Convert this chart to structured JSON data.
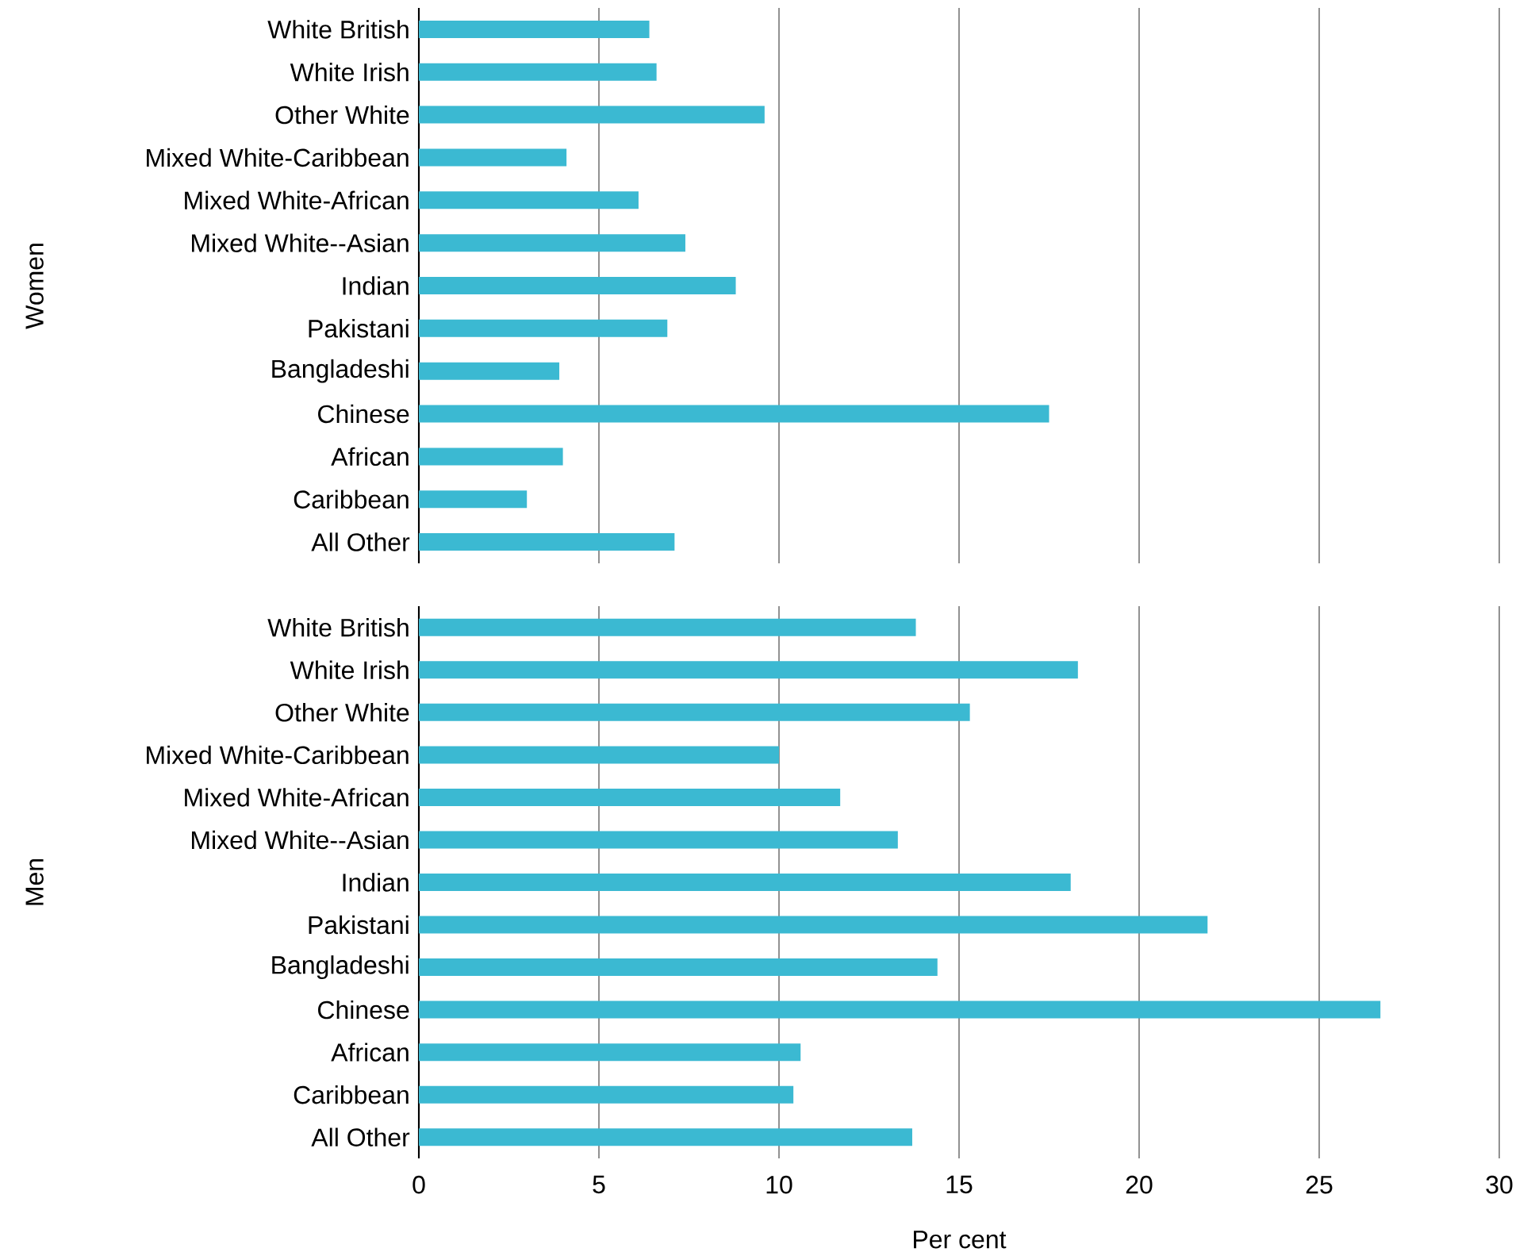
{
  "chart_data": [
    {
      "type": "bar",
      "orientation": "horizontal",
      "ylabel": "Women",
      "categories": [
        "White British",
        "White Irish",
        "Other White",
        "Mixed White-Caribbean",
        "Mixed White-African",
        "Mixed White--Asian",
        "Indian",
        "Pakistani",
        "Bangladeshi",
        "Chinese",
        "African",
        "Caribbean",
        "All Other"
      ],
      "values": [
        6.4,
        6.6,
        9.6,
        4.1,
        6.1,
        7.4,
        8.8,
        6.9,
        3.9,
        17.5,
        4.0,
        3.0,
        7.1
      ],
      "color": "#3bb9d2",
      "xlim": [
        0,
        30
      ],
      "xticks": [
        0,
        5,
        10,
        15,
        20,
        25,
        30
      ],
      "grid": "x",
      "tick_labels": "y"
    },
    {
      "type": "bar",
      "orientation": "horizontal",
      "ylabel": "Men",
      "xlabel": "Per cent",
      "categories": [
        "White British",
        "White Irish",
        "Other White",
        "Mixed White-Caribbean",
        "Mixed White-African",
        "Mixed White--Asian",
        "Indian",
        "Pakistani",
        "Bangladeshi",
        "Chinese",
        "African",
        "Caribbean",
        "All Other"
      ],
      "values": [
        13.8,
        18.3,
        15.3,
        10.0,
        11.7,
        13.3,
        18.1,
        21.9,
        14.4,
        26.7,
        10.6,
        10.4,
        13.7
      ],
      "color": "#3bb9d2",
      "xlim": [
        0,
        30
      ],
      "xticks": [
        0,
        5,
        10,
        15,
        20,
        25,
        30
      ],
      "grid": "x"
    }
  ]
}
